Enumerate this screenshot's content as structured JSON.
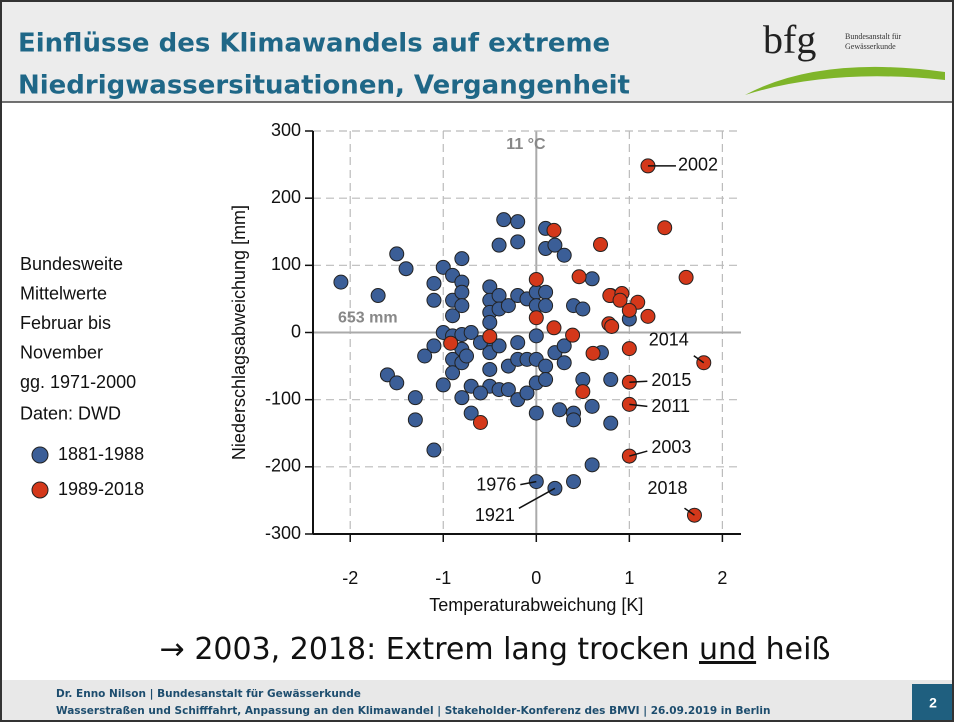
{
  "slide": {
    "title": [
      "Einflüsse des Klimawandels  auf extreme",
      "Niedrigwassersituationen, Vergangenheit"
    ],
    "logo": {
      "mark": "bfg",
      "text": [
        "Bundesanstalt für",
        "Gewässerkunde"
      ]
    },
    "note": [
      "Bundesweite",
      "Mittelwerte",
      "Februar bis",
      "November",
      "gg. 1971-2000",
      "Daten: DWD"
    ],
    "conclusion": [
      "→ 2003, 2018: Extrem lang trocken",
      "und",
      "heiß"
    ],
    "footer": [
      "Dr. Enno Nilson  |  Bundesanstalt für Gewässerkunde",
      "Wasserstraßen und Schifffahrt, Anpassung an den Klimawandel | Stakeholder-Konferenz des BMVI | 26.09.2019 in Berlin"
    ],
    "page": "2"
  },
  "chart_data": {
    "type": "scatter",
    "x_label": "Temperaturabweichung [K]",
    "y_label": "Niederschlagsabweichung [mm]",
    "xlim": [
      -2.4,
      2.2
    ],
    "ylim": [
      -300,
      300
    ],
    "xticks": [
      -2,
      -1,
      0,
      1,
      2
    ],
    "yticks": [
      -300,
      -200,
      -100,
      0,
      100,
      200,
      300
    ],
    "grid": true,
    "reference_labels": {
      "x": "11 °C",
      "y": "653 mm"
    },
    "series": [
      {
        "name": "1881-1988",
        "color": "#3b5e97",
        "x": [
          -2.1,
          -1.7,
          -1.5,
          -1.4,
          -1.6,
          -1.5,
          -1.3,
          -1.3,
          -1.1,
          -1.1,
          -1.1,
          -1.0,
          -1.0,
          -1.1,
          -1.0,
          -0.9,
          -0.9,
          -0.9,
          -0.9,
          -0.9,
          -0.9,
          -0.8,
          -0.8,
          -0.8,
          -0.8,
          -0.8,
          -0.8,
          -0.8,
          -0.8,
          -0.7,
          -0.7,
          -0.7,
          -0.75,
          -0.5,
          -0.5,
          -0.5,
          -0.5,
          -0.5,
          -0.5,
          -0.5,
          -0.5,
          -0.6,
          -0.4,
          -0.4,
          -0.4,
          -0.4,
          -0.4,
          -0.35,
          -0.3,
          -0.3,
          -0.3,
          -0.2,
          -0.2,
          -0.2,
          -0.2,
          -0.2,
          -0.2,
          -0.1,
          -0.1,
          -0.1,
          0,
          0,
          0,
          0,
          0,
          0,
          0,
          0.1,
          0.1,
          0.1,
          0.1,
          0.1,
          0.1,
          0.2,
          0.2,
          0.2,
          0.3,
          0.3,
          0.3,
          0.4,
          0.4,
          0.4,
          0.4,
          0.5,
          0.5,
          0.6,
          0.6,
          0.6,
          0.7,
          0.8,
          0.8,
          0.8,
          1.0,
          -0.6,
          -1.2,
          0.25
        ],
        "values": [
          75,
          55,
          117,
          95,
          -63,
          -75,
          -97,
          -130,
          -175,
          73,
          48,
          97,
          0,
          -20,
          -78,
          85,
          48,
          25,
          -5,
          -40,
          -60,
          110,
          75,
          60,
          40,
          -3,
          -25,
          -45,
          -97,
          -80,
          -120,
          0,
          -35,
          68,
          48,
          30,
          15,
          -10,
          -30,
          -55,
          -80,
          -90,
          130,
          55,
          35,
          -20,
          -85,
          168,
          40,
          -50,
          -85,
          165,
          135,
          55,
          -15,
          -40,
          -100,
          50,
          -40,
          -90,
          60,
          40,
          -5,
          -40,
          -75,
          -120,
          -222,
          155,
          125,
          60,
          40,
          -50,
          -70,
          130,
          -30,
          -232,
          115,
          -20,
          -45,
          40,
          -120,
          -130,
          -222,
          35,
          -70,
          80,
          -110,
          -197,
          -30,
          55,
          -70,
          -135,
          20,
          -15,
          -35,
          -115
        ]
      },
      {
        "name": "1989-2018",
        "color": "#d4381a",
        "x": [
          1.2,
          1.8,
          1.0,
          1.0,
          1.0,
          1.7,
          0.19,
          0.69,
          1.38,
          1.61,
          0,
          0,
          0.46,
          0.19,
          0.39,
          0.61,
          0.78,
          0.79,
          0.92,
          0.9,
          1.09,
          1.2,
          1.0,
          1.0,
          0.5,
          -0.5,
          -0.92,
          -0.6,
          0.81
        ],
        "values": [
          248,
          -45,
          -74,
          -107,
          -184,
          -272,
          152,
          131,
          156,
          82,
          79,
          22,
          83,
          7,
          -4,
          -31,
          13,
          55,
          58,
          48,
          45,
          24,
          33,
          -24,
          -88,
          -6,
          -16,
          -134,
          9
        ]
      }
    ],
    "annotations": [
      {
        "text": "2002",
        "x": 1.2,
        "y": 248
      },
      {
        "text": "2014",
        "x": 1.8,
        "y": -45
      },
      {
        "text": "2015",
        "x": 1.0,
        "y": -74
      },
      {
        "text": "2011",
        "x": 1.0,
        "y": -107
      },
      {
        "text": "2003",
        "x": 1.0,
        "y": -184
      },
      {
        "text": "2018",
        "x": 1.7,
        "y": -272
      },
      {
        "text": "1976",
        "x": 0,
        "y": -222
      },
      {
        "text": "1921",
        "x": 0.2,
        "y": -232
      }
    ]
  }
}
